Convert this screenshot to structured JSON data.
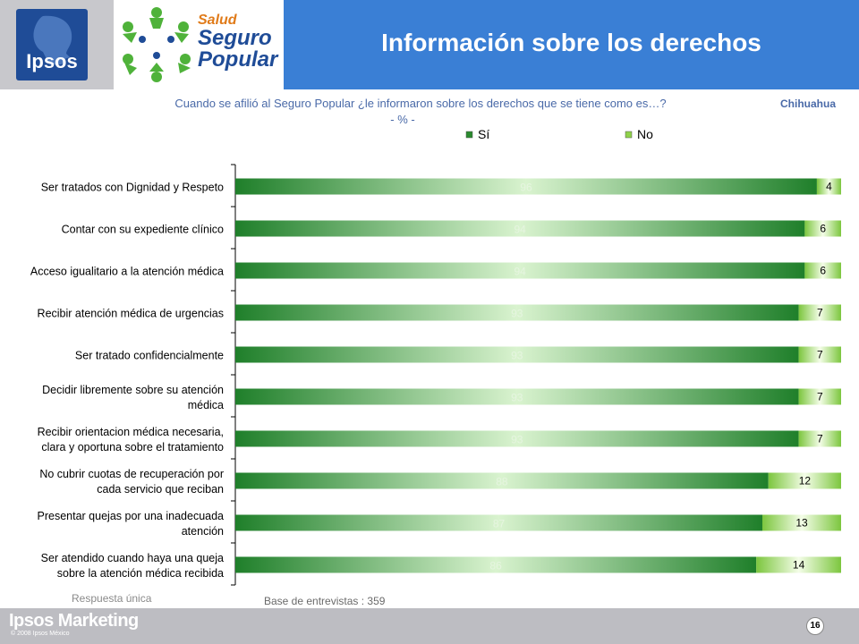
{
  "header": {
    "title": "Información sobre los derechos",
    "logo_ipsos": "Ipsos",
    "logo_salud": "Salud",
    "logo_seguro": "Seguro",
    "logo_popular": "Popular"
  },
  "question": "Cuando se afilió al Seguro Popular ¿le informaron sobre los derechos que se tiene como es…?",
  "unit": "- % -",
  "region": "Chihuahua",
  "notes": {
    "single": "Respuesta única",
    "base": "Base de entrevistas : 359"
  },
  "footer": {
    "brand": "Ipsos Marketing",
    "copyright": "© 2008 Ipsos México",
    "page": "16"
  },
  "colors": {
    "header_blue": "#3a7fd5",
    "si_green": "#1e8a2a",
    "no_green": "#8fd24a",
    "text_blue": "#4a6aa8"
  },
  "chart_data": {
    "type": "bar",
    "orientation": "horizontal",
    "stacked": true,
    "categories": [
      [
        "Ser tratados con Dignidad y Respeto"
      ],
      [
        "Contar con su expediente clínico"
      ],
      [
        "Acceso igualitario a la atención médica"
      ],
      [
        "Recibir atención médica de urgencias"
      ],
      [
        "Ser tratado confidencialmente"
      ],
      [
        "Decidir libremente sobre su atención",
        "médica"
      ],
      [
        "Recibir orientacion médica necesaria,",
        "clara y oportuna sobre el tratamiento"
      ],
      [
        "No cubrir cuotas de recuperación por",
        "cada servicio  que reciban"
      ],
      [
        "Presentar quejas por una inadecuada",
        "atención"
      ],
      [
        "Ser atendido cuando haya una queja",
        "sobre la atención médica recibida"
      ]
    ],
    "series": [
      {
        "name": "Sí",
        "values": [
          96,
          94,
          94,
          93,
          93,
          93,
          93,
          88,
          87,
          86
        ]
      },
      {
        "name": "No",
        "values": [
          4,
          6,
          6,
          7,
          7,
          7,
          7,
          12,
          13,
          14
        ]
      }
    ],
    "xlim": [
      0,
      100
    ],
    "legend": "top"
  }
}
